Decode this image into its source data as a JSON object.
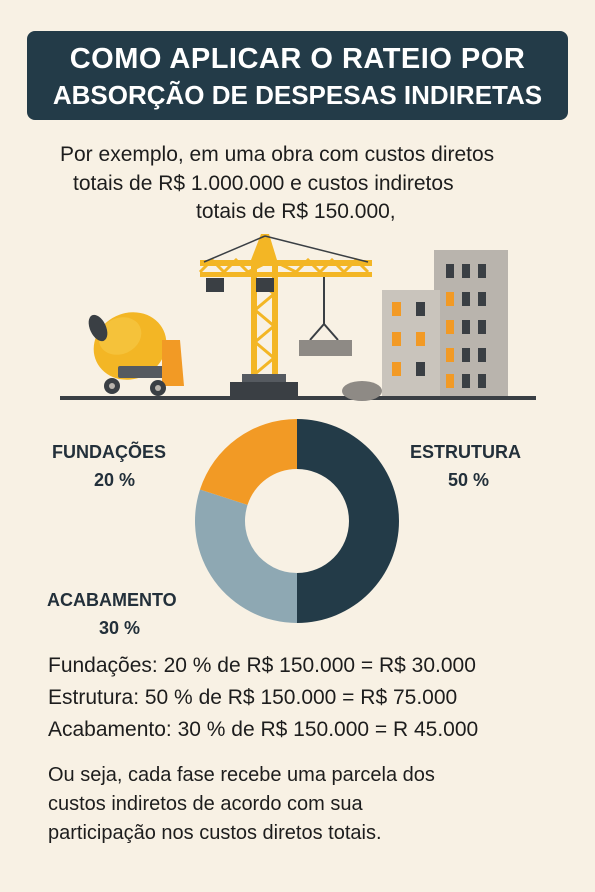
{
  "title": {
    "line1": "COMO APLICAR O RATEIO POR",
    "line2": "ABSORÇÃO DE DESPESAS INDIRETAS"
  },
  "intro": {
    "line1": "Por exemplo, em uma obra com custos diretos",
    "line2": "totais de R$ 1.000.000 e custos indiretos",
    "line3": "totais de R$ 150.000,"
  },
  "illustration": {
    "icons": [
      "cement-mixer-icon",
      "tower-crane-icon",
      "building-icon"
    ],
    "colors": {
      "yellow": "#f3b625",
      "orange": "#f29a25",
      "gray": "#b9b4ad",
      "dark": "#3a3f44"
    }
  },
  "chart_data": {
    "type": "pie",
    "donut": true,
    "slices": [
      {
        "name": "ESTRUTURA",
        "label_value": "50 %",
        "value": 50,
        "color": "#233b48"
      },
      {
        "name": "ACABAMENTO",
        "label_value": "30 %",
        "value": 30,
        "color": "#8ea8b3"
      },
      {
        "name": "FUNDAÇÕES",
        "label_value": "20 %",
        "value": 20,
        "color": "#f29a25"
      }
    ]
  },
  "calculations": {
    "line1": "Fundações: 20 % de R$ 150.000 = R$ 30.000",
    "line2": "Estrutura: 50 % de R$ 150.000 = R$ 75.000",
    "line3": "Acabamento: 30 % de R$ 150.000 = R 45.000"
  },
  "conclusion": {
    "line1": "Ou seja, cada fase recebe uma parcela dos",
    "line2": "custos indiretos de acordo com sua",
    "line3": "participação nos custos diretos totais."
  }
}
